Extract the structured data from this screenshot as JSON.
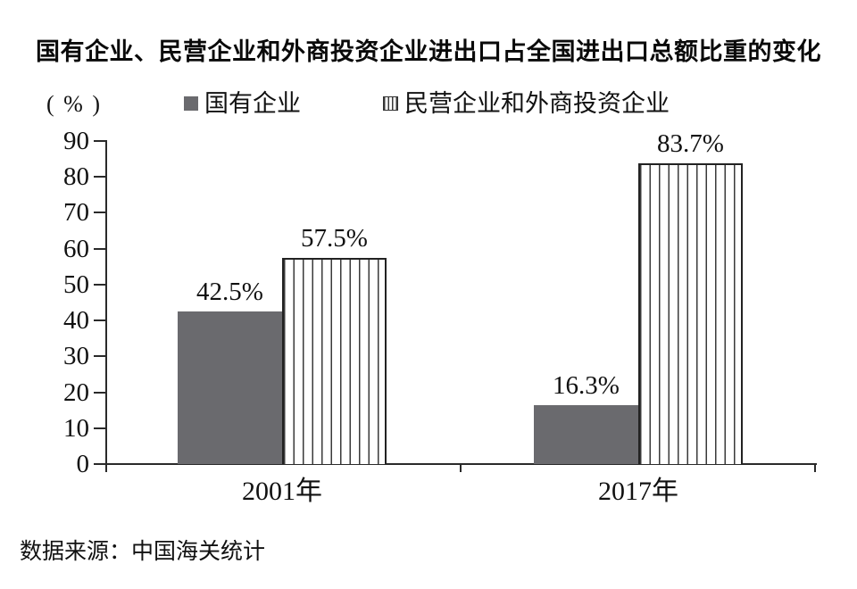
{
  "chart_data": {
    "type": "bar",
    "title": "国有企业、民营企业和外商投资企业进出口占全国进出口总额比重的变化",
    "categories": [
      "2001年",
      "2017年"
    ],
    "series": [
      {
        "name": "国有企业",
        "values": [
          42.5,
          16.3
        ],
        "labels": [
          "42.5%",
          "16.3%"
        ],
        "style": "solid-gray"
      },
      {
        "name": "民营企业和外商投资企业",
        "values": [
          57.5,
          83.7
        ],
        "labels": [
          "57.5%",
          "83.7%"
        ],
        "style": "striped-vertical"
      }
    ],
    "ylabel": "( % )",
    "ylim": [
      0,
      90
    ],
    "ytick_step": 10,
    "yticks": [
      0,
      10,
      20,
      30,
      40,
      50,
      60,
      70,
      80,
      90
    ],
    "grid": false,
    "legend_position": "top",
    "source": "数据来源：中国海关统计"
  },
  "colors": {
    "background": "#ffffff",
    "bar_solid": "#6a6a6e",
    "bar_striped_bg": "#ffffff",
    "stripe_line": "#3a3a3a",
    "axis": "#2a2a2a",
    "text": "#111111"
  }
}
